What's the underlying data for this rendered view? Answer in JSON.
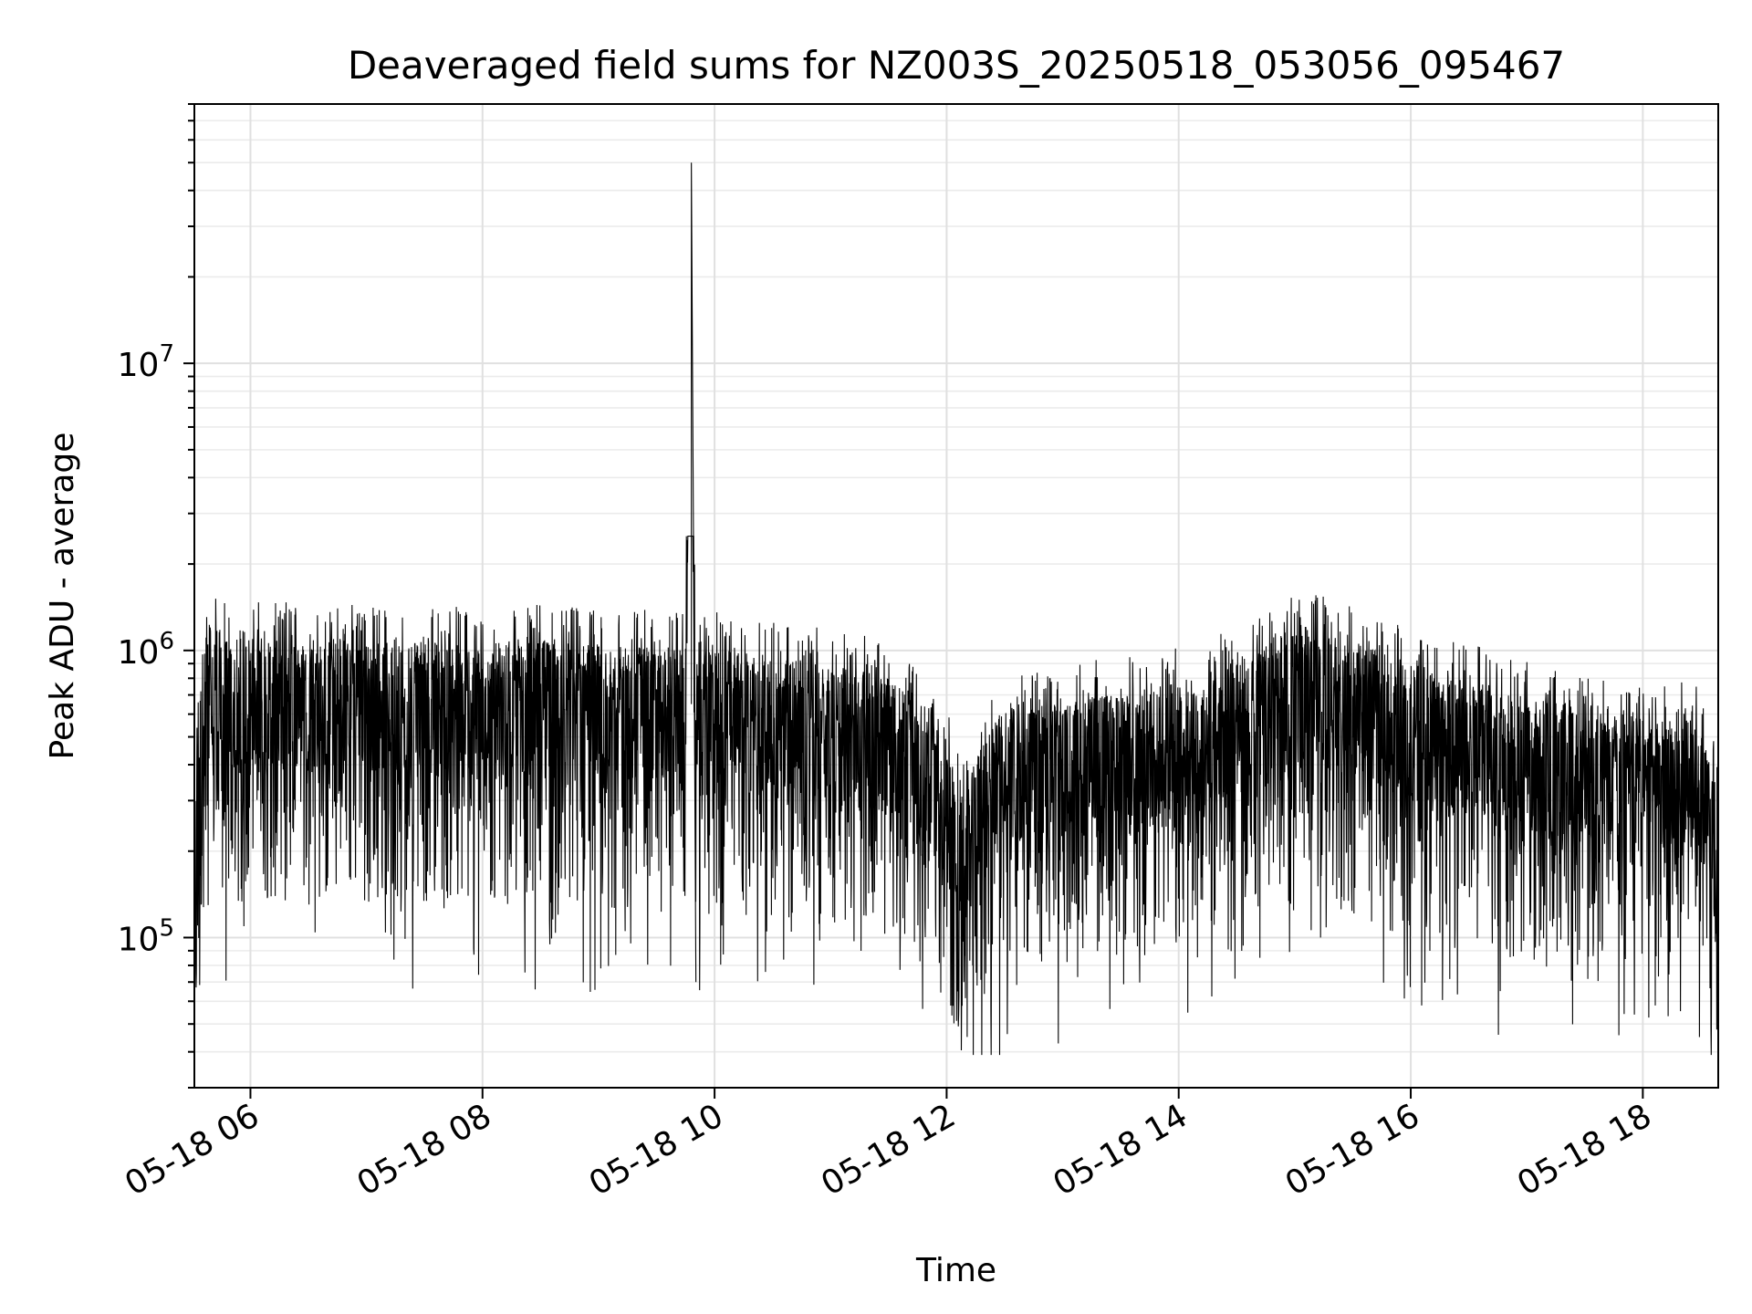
{
  "chart_data": {
    "type": "line",
    "title": "Deaveraged field sums for NZ003S_20250518_053056_095467",
    "xlabel": "Time",
    "ylabel": "Peak ADU - average",
    "yscale": "log",
    "grid": "major and minor",
    "legend": "none",
    "line_color": "#000000",
    "xlim": [
      "2025-05-18 05:31",
      "2025-05-18 18:39"
    ],
    "ylim": [
      30000,
      80000000
    ],
    "xticks": [
      "05-18 06",
      "05-18 08",
      "05-18 10",
      "05-18 12",
      "05-18 14",
      "05-18 16",
      "05-18 18"
    ],
    "xtick_times": [
      "2025-05-18 06:00",
      "2025-05-18 08:00",
      "2025-05-18 10:00",
      "2025-05-18 12:00",
      "2025-05-18 14:00",
      "2025-05-18 16:00",
      "2025-05-18 18:00"
    ],
    "yticks": [
      {
        "value": 100000,
        "base": "10",
        "exp": "5"
      },
      {
        "value": 1000000,
        "base": "10",
        "exp": "6"
      },
      {
        "value": 10000000,
        "base": "10",
        "exp": "7"
      }
    ],
    "series": [
      {
        "x": [
          "2025-05-18 05:31",
          "2025-05-18 05:35",
          "2025-05-18 05:40",
          "2025-05-18 05:45",
          "2025-05-18 05:50",
          "2025-05-18 06:00",
          "2025-05-18 06:10",
          "2025-05-18 06:20",
          "2025-05-18 06:30",
          "2025-05-18 06:45",
          "2025-05-18 07:00",
          "2025-05-18 07:15",
          "2025-05-18 07:30",
          "2025-05-18 07:45",
          "2025-05-18 08:00",
          "2025-05-18 08:15",
          "2025-05-18 08:30",
          "2025-05-18 08:45",
          "2025-05-18 09:00",
          "2025-05-18 09:15",
          "2025-05-18 09:20",
          "2025-05-18 09:30",
          "2025-05-18 09:45",
          "2025-05-18 09:48",
          "2025-05-18 09:50",
          "2025-05-18 10:00",
          "2025-05-18 10:15",
          "2025-05-18 10:30",
          "2025-05-18 10:45",
          "2025-05-18 11:00",
          "2025-05-18 11:15",
          "2025-05-18 11:30",
          "2025-05-18 11:45",
          "2025-05-18 12:00",
          "2025-05-18 12:08",
          "2025-05-18 12:15",
          "2025-05-18 12:25",
          "2025-05-18 12:35",
          "2025-05-18 12:45",
          "2025-05-18 13:00",
          "2025-05-18 13:15",
          "2025-05-18 13:30",
          "2025-05-18 13:45",
          "2025-05-18 14:00",
          "2025-05-18 14:15",
          "2025-05-18 14:30",
          "2025-05-18 14:45",
          "2025-05-18 15:00",
          "2025-05-18 15:05",
          "2025-05-18 15:15",
          "2025-05-18 15:30",
          "2025-05-18 15:45",
          "2025-05-18 16:00",
          "2025-05-18 16:15",
          "2025-05-18 16:30",
          "2025-05-18 16:45",
          "2025-05-18 17:00",
          "2025-05-18 17:15",
          "2025-05-18 17:30",
          "2025-05-18 17:45",
          "2025-05-18 18:00",
          "2025-05-18 18:15",
          "2025-05-18 18:25",
          "2025-05-18 18:39"
        ],
        "y": [
          170000,
          600000,
          850000,
          700000,
          650000,
          700000,
          650000,
          700000,
          650000,
          680000,
          660000,
          670000,
          650000,
          660000,
          650000,
          640000,
          660000,
          650000,
          640000,
          620000,
          650000,
          600000,
          650000,
          50000000,
          600000,
          620000,
          600000,
          580000,
          560000,
          540000,
          520000,
          480000,
          420000,
          300000,
          180000,
          250000,
          350000,
          400000,
          380000,
          400000,
          420000,
          430000,
          450000,
          470000,
          500000,
          550000,
          650000,
          750000,
          750000,
          700000,
          650000,
          600000,
          550000,
          500000,
          480000,
          450000,
          420000,
          400000,
          380000,
          370000,
          360000,
          370000,
          400000,
          200000
        ]
      }
    ]
  }
}
